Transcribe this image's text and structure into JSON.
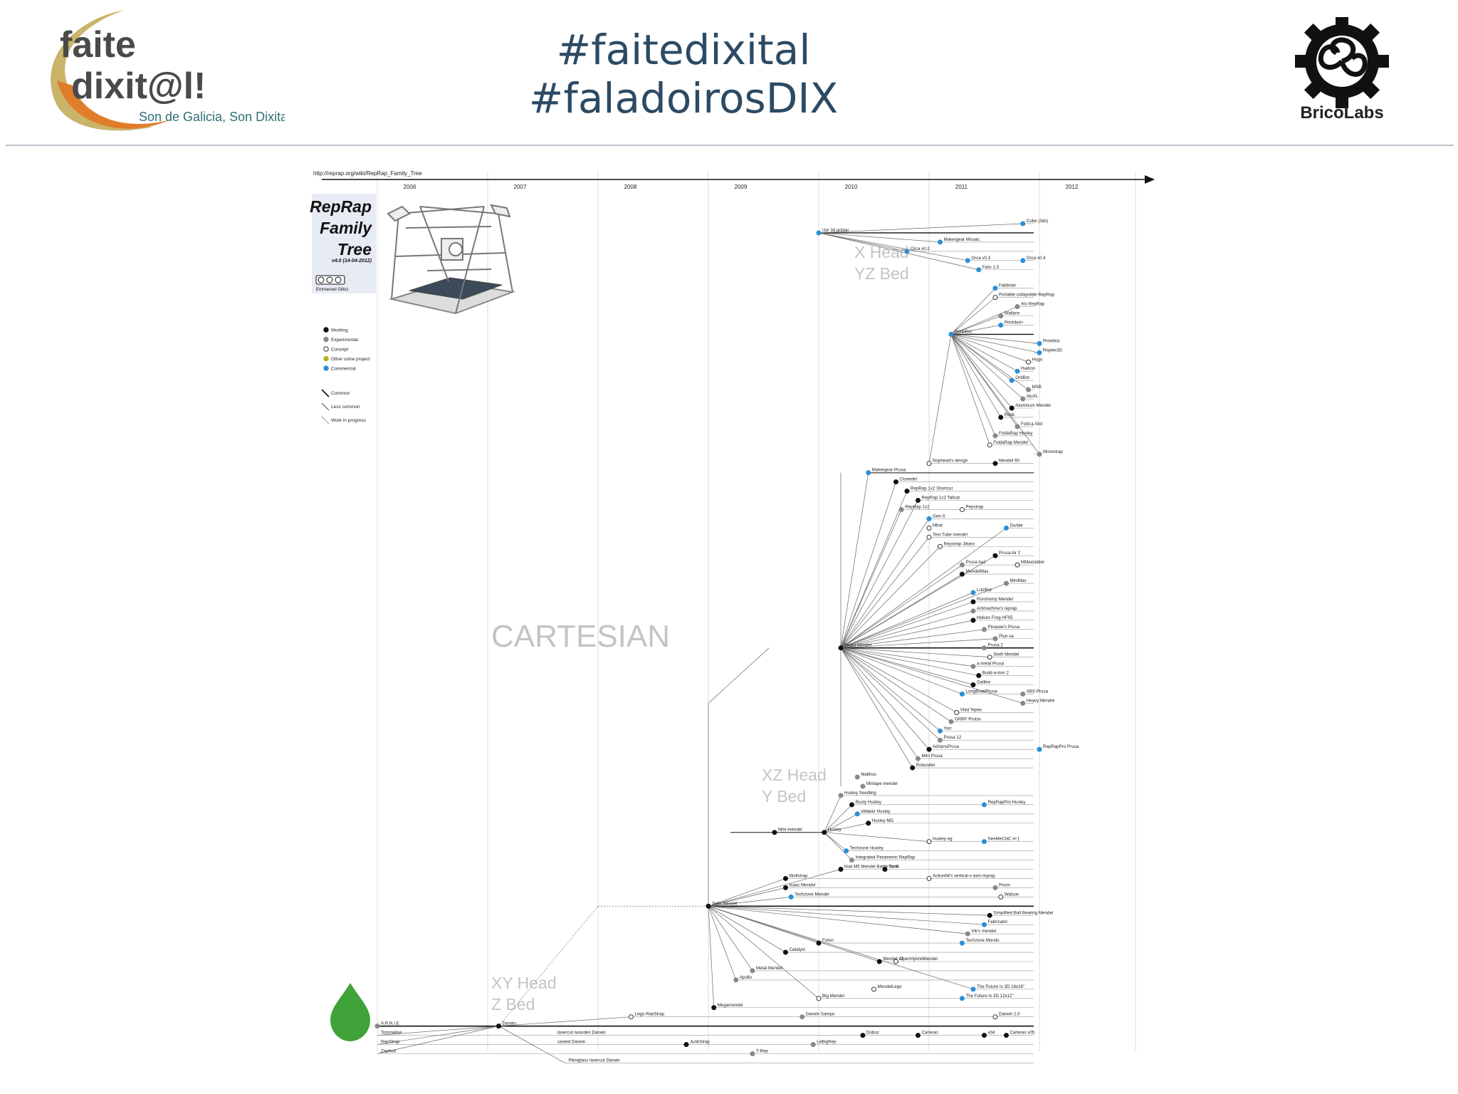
{
  "header": {
    "brand_left_line1": "faite",
    "brand_left_line2": "dixit@l!",
    "brand_left_tagline": "Son de Galicia, Son Dixital",
    "hashtag_1": "#faitedixital",
    "hashtag_2": "#faladoirosDIX",
    "brand_right": "BricoLabs"
  },
  "diagram": {
    "source_url": "http://reprap.org/wiki/RepRap_Family_Tree",
    "title_lines": [
      "RepRap",
      "Family",
      "Tree"
    ],
    "version": "v4.0 (14-04-2012)",
    "author": "Emmanuel Gilloz",
    "years": [
      "2006",
      "2007",
      "2008",
      "2009",
      "2010",
      "2011",
      "2012"
    ],
    "legend_status": [
      {
        "label": "Working",
        "color": "#111111",
        "hollow": false
      },
      {
        "label": "Experimental",
        "color": "#888888",
        "hollow": false
      },
      {
        "label": "Concept",
        "color": "#ffffff",
        "hollow": true
      },
      {
        "label": "Other oshw project",
        "color": "#b7b020",
        "hollow": false
      },
      {
        "label": "Commercial",
        "color": "#2a8fd6",
        "hollow": false
      }
    ],
    "legend_lines": [
      {
        "label": "Common",
        "style": "solid"
      },
      {
        "label": "Less common",
        "style": "thin"
      },
      {
        "label": "Work in progress",
        "style": "dotted"
      }
    ],
    "regions": [
      {
        "lines": [
          "X Head",
          "YZ Bed"
        ]
      },
      {
        "lines": [
          "CARTESIAN"
        ]
      },
      {
        "lines": [
          "XZ Head",
          "Y Bed"
        ]
      },
      {
        "lines": [
          "XY Head",
          "Z Bed"
        ]
      }
    ],
    "nodes": [
      {
        "label": "Cube (3ds)",
        "year": 2011.85,
        "row": 0,
        "status": "commercial"
      },
      {
        "label": "Up! 3d printer",
        "year": 2010.0,
        "row": 1,
        "status": "commercial"
      },
      {
        "label": "Makergear Mosaic",
        "year": 2011.1,
        "row": 2,
        "status": "commercial"
      },
      {
        "label": "Orca v0.2",
        "year": 2010.8,
        "row": 3,
        "status": "commercial"
      },
      {
        "label": "Orca v0.3",
        "year": 2011.35,
        "row": 4,
        "status": "commercial"
      },
      {
        "label": "Orca v0.4",
        "year": 2011.85,
        "row": 4,
        "status": "commercial"
      },
      {
        "label": "Felix 1.0",
        "year": 2011.45,
        "row": 5,
        "status": "commercial"
      },
      {
        "label": "Fabbster",
        "year": 2011.6,
        "row": 7,
        "status": "commercial"
      },
      {
        "label": "Portable collapsible RepRap",
        "year": 2011.6,
        "row": 8,
        "status": "concept"
      },
      {
        "label": "Alu RepRap",
        "year": 2011.8,
        "row": 9,
        "status": "experimental"
      },
      {
        "label": "Wallace",
        "year": 2011.65,
        "row": 10,
        "status": "experimental"
      },
      {
        "label": "Printrbot+",
        "year": 2011.65,
        "row": 11,
        "status": "commercial"
      },
      {
        "label": "PrintrBot",
        "year": 2011.2,
        "row": 12,
        "status": "commercial"
      },
      {
        "label": "Printrbot",
        "year": 2012.0,
        "row": 13,
        "status": "commercial"
      },
      {
        "label": "Replex3D",
        "year": 2012.0,
        "row": 14,
        "status": "commercial"
      },
      {
        "label": "Hugo",
        "year": 2011.9,
        "row": 15,
        "status": "concept"
      },
      {
        "label": "Hadron",
        "year": 2011.8,
        "row": 16,
        "status": "commercial"
      },
      {
        "label": "OrdBot",
        "year": 2011.75,
        "row": 17,
        "status": "commercial"
      },
      {
        "label": "MSB",
        "year": 2011.9,
        "row": 18,
        "status": "experimental"
      },
      {
        "label": "AluXL",
        "year": 2011.85,
        "row": 19,
        "status": "experimental"
      },
      {
        "label": "Aluminum Mendel",
        "year": 2011.75,
        "row": 20,
        "status": "working"
      },
      {
        "label": "Rook",
        "year": 2011.65,
        "row": 21,
        "status": "working"
      },
      {
        "label": "Fold-a-Slot",
        "year": 2011.8,
        "row": 22,
        "status": "experimental"
      },
      {
        "label": "FoldaRap Huxley",
        "year": 2011.6,
        "row": 23,
        "status": "experimental"
      },
      {
        "label": "FoldaRap Mendel",
        "year": 2011.55,
        "row": 24,
        "status": "concept"
      },
      {
        "label": "Morestrap",
        "year": 2012.0,
        "row": 25,
        "status": "experimental"
      },
      {
        "label": "Nophead's design",
        "year": 2011.0,
        "row": 26,
        "status": "concept"
      },
      {
        "label": "Mendel 90",
        "year": 2011.6,
        "row": 26,
        "status": "working"
      },
      {
        "label": "Makergear Prusa",
        "year": 2010.45,
        "row": 27,
        "status": "commercial"
      },
      {
        "label": "Clonedel",
        "year": 2010.7,
        "row": 28,
        "status": "working"
      },
      {
        "label": "RepRap 1x2 Shortcut",
        "year": 2010.8,
        "row": 29,
        "status": "working"
      },
      {
        "label": "RepRap 1x2 Tallcat",
        "year": 2010.9,
        "row": 30,
        "status": "working"
      },
      {
        "label": "RepRap 1x2",
        "year": 2010.75,
        "row": 31,
        "status": "experimental"
      },
      {
        "label": "Pepstrap",
        "year": 2011.3,
        "row": 31,
        "status": "concept"
      },
      {
        "label": "Gen-X",
        "year": 2011.0,
        "row": 32,
        "status": "commercial"
      },
      {
        "label": "Durbie",
        "year": 2011.7,
        "row": 33,
        "status": "commercial"
      },
      {
        "label": "Mbot",
        "year": 2011.0,
        "row": 33,
        "status": "concept"
      },
      {
        "label": "Test Tube mendel",
        "year": 2011.0,
        "row": 34,
        "status": "concept"
      },
      {
        "label": "Repstrap Jibaro",
        "year": 2011.1,
        "row": 35,
        "status": "concept"
      },
      {
        "label": "Prusa Air 2",
        "year": 2011.6,
        "row": 36,
        "status": "working"
      },
      {
        "label": "Prusa Aaz",
        "year": 2011.3,
        "row": 37,
        "status": "experimental"
      },
      {
        "label": "MMaxislider",
        "year": 2011.8,
        "row": 37,
        "status": "concept"
      },
      {
        "label": "MendelMax",
        "year": 2011.3,
        "row": 38,
        "status": "working"
      },
      {
        "label": "MiniMax",
        "year": 2011.7,
        "row": 39,
        "status": "experimental"
      },
      {
        "label": "LulzBot",
        "year": 2011.4,
        "row": 40,
        "status": "commercial"
      },
      {
        "label": "Rorohomp Mendel",
        "year": 2011.4,
        "row": 41,
        "status": "working"
      },
      {
        "label": "Artimachine's reprap",
        "year": 2011.4,
        "row": 42,
        "status": "experimental"
      },
      {
        "label": "Helium Frog HF05",
        "year": 2011.4,
        "row": 43,
        "status": "working"
      },
      {
        "label": "Pinacee's Prusa",
        "year": 2011.5,
        "row": 44,
        "status": "experimental"
      },
      {
        "label": "Plun-sa",
        "year": 2011.6,
        "row": 45,
        "status": "experimental"
      },
      {
        "label": "Prusa Mendel",
        "year": 2010.2,
        "row": 46,
        "status": "working"
      },
      {
        "label": "Prusa 2",
        "year": 2011.5,
        "row": 46,
        "status": "experimental"
      },
      {
        "label": "Sloth Mendel",
        "year": 2011.55,
        "row": 47,
        "status": "concept"
      },
      {
        "label": "a metal Prusa",
        "year": 2011.4,
        "row": 48,
        "status": "experimental"
      },
      {
        "label": "Build-a-tron 2",
        "year": 2011.45,
        "row": 49,
        "status": "working"
      },
      {
        "label": "Galileo",
        "year": 2011.4,
        "row": 50,
        "status": "working"
      },
      {
        "label": "LongBoat/Prusa",
        "year": 2011.3,
        "row": 51,
        "status": "commercial"
      },
      {
        "label": "ABS Prusa",
        "year": 2011.85,
        "row": 51,
        "status": "experimental"
      },
      {
        "label": "Heavy Mendel",
        "year": 2011.85,
        "row": 52,
        "status": "experimental"
      },
      {
        "label": "Vlad Tepes",
        "year": 2011.25,
        "row": 53,
        "status": "concept"
      },
      {
        "label": "GRRF Protos",
        "year": 2011.2,
        "row": 54,
        "status": "experimental"
      },
      {
        "label": "Yarr",
        "year": 2011.1,
        "row": 55,
        "status": "commercial"
      },
      {
        "label": "Prusa 12",
        "year": 2011.1,
        "row": 56,
        "status": "experimental"
      },
      {
        "label": "AdriansPrusa",
        "year": 2011.0,
        "row": 57,
        "status": "working"
      },
      {
        "label": "RepRapPro Prusa",
        "year": 2012.0,
        "row": 57,
        "status": "commercial"
      },
      {
        "label": "Mini Prusa",
        "year": 2010.9,
        "row": 58,
        "status": "experimental"
      },
      {
        "label": "Robundel",
        "year": 2010.85,
        "row": 59,
        "status": "working"
      },
      {
        "label": "Malthus",
        "year": 2010.35,
        "row": 60,
        "status": "experimental"
      },
      {
        "label": "Mixtape mendel",
        "year": 2010.4,
        "row": 61,
        "status": "experimental"
      },
      {
        "label": "Huxley Seedling",
        "year": 2010.2,
        "row": 62,
        "status": "experimental"
      },
      {
        "label": "Rusty Huxley",
        "year": 2010.3,
        "row": 63,
        "status": "working"
      },
      {
        "label": "RepRapPro Huxley",
        "year": 2011.5,
        "row": 63,
        "status": "commercial"
      },
      {
        "label": "eMaker Huxley",
        "year": 2010.35,
        "row": 64,
        "status": "commercial"
      },
      {
        "label": "Huxley MD",
        "year": 2010.45,
        "row": 65,
        "status": "working"
      },
      {
        "label": "Mini-mendel",
        "year": 2009.6,
        "row": 66,
        "status": "working"
      },
      {
        "label": "Huxley",
        "year": 2010.05,
        "row": 66,
        "status": "working"
      },
      {
        "label": "Huxley eg",
        "year": 2011.0,
        "row": 67,
        "status": "concept"
      },
      {
        "label": "SeeMeCNC H-1",
        "year": 2011.5,
        "row": 67,
        "status": "commercial"
      },
      {
        "label": "Techzone Huxley",
        "year": 2010.25,
        "row": 68,
        "status": "commercial"
      },
      {
        "label": "Integrated Parametric RepRap",
        "year": 2010.3,
        "row": 69,
        "status": "experimental"
      },
      {
        "label": "Kiwi M5 Mendel Battle Tank",
        "year": 2010.2,
        "row": 70,
        "status": "working"
      },
      {
        "label": "VertX",
        "year": 2010.6,
        "row": 70,
        "status": "working"
      },
      {
        "label": "Wolfstrap",
        "year": 2009.7,
        "row": 71,
        "status": "working"
      },
      {
        "label": "Action68's vertical-x-axis-reprap",
        "year": 2011.0,
        "row": 71,
        "status": "concept"
      },
      {
        "label": "Isaac Mendel",
        "year": 2009.7,
        "row": 72,
        "status": "working"
      },
      {
        "label": "Prism",
        "year": 2011.6,
        "row": 72,
        "status": "experimental"
      },
      {
        "label": "Techzone Mendel",
        "year": 2009.75,
        "row": 73,
        "status": "commercial"
      },
      {
        "label": "Watson",
        "year": 2011.65,
        "row": 73,
        "status": "concept"
      },
      {
        "label": "Sells Mendel",
        "year": 2009.0,
        "row": 74,
        "status": "working"
      },
      {
        "label": "Simplified Ball Bearing Mendel",
        "year": 2011.55,
        "row": 75,
        "status": "working"
      },
      {
        "label": "Fabricator",
        "year": 2011.5,
        "row": 76,
        "status": "commercial"
      },
      {
        "label": "Vik's mendel",
        "year": 2011.35,
        "row": 77,
        "status": "experimental"
      },
      {
        "label": "Foton",
        "year": 2010.0,
        "row": 78,
        "status": "working"
      },
      {
        "label": "Techzone Mondo",
        "year": 2011.3,
        "row": 78,
        "status": "commercial"
      },
      {
        "label": "Catalyst",
        "year": 2009.7,
        "row": 79,
        "status": "working"
      },
      {
        "label": "Mendel v2",
        "year": 2010.55,
        "row": 80,
        "status": "working"
      },
      {
        "label": "OpenHybridMendel",
        "year": 2010.7,
        "row": 80,
        "status": "concept"
      },
      {
        "label": "Metal Mendel",
        "year": 2009.4,
        "row": 81,
        "status": "experimental"
      },
      {
        "label": "Apollo",
        "year": 2009.25,
        "row": 82,
        "status": "experimental"
      },
      {
        "label": "The Future Is 3D 16x16\"",
        "year": 2011.4,
        "row": 83,
        "status": "commercial"
      },
      {
        "label": "MendelLego",
        "year": 2010.5,
        "row": 83,
        "status": "concept"
      },
      {
        "label": "Big Mendel",
        "year": 2010.0,
        "row": 84,
        "status": "concept"
      },
      {
        "label": "The Future Is 3D 12x12\"",
        "year": 2011.3,
        "row": 84,
        "status": "commercial"
      },
      {
        "label": "Megamendel",
        "year": 2009.05,
        "row": 85,
        "status": "working"
      },
      {
        "label": "Lego RepStrap",
        "year": 2008.3,
        "row": 86,
        "status": "concept"
      },
      {
        "label": "Darwin Sampo",
        "year": 2009.85,
        "row": 86,
        "status": "experimental"
      },
      {
        "label": "Darwin 2.0",
        "year": 2011.6,
        "row": 86,
        "status": "concept"
      },
      {
        "label": "A.R.N.I.E",
        "year": 2006.0,
        "row": 87,
        "status": "experimental"
      },
      {
        "label": "Darwin",
        "year": 2007.1,
        "row": 87,
        "status": "working"
      },
      {
        "label": "Tommelise",
        "year": 2006.0,
        "row": 88,
        "status": "label"
      },
      {
        "label": "lasercut /wooden Darwin",
        "year": 2007.6,
        "row": 88,
        "status": "label"
      },
      {
        "label": "Doboz",
        "year": 2010.4,
        "row": 88,
        "status": "working"
      },
      {
        "label": "Cartesio",
        "year": 2010.9,
        "row": 88,
        "status": "working"
      },
      {
        "label": "v04",
        "year": 2011.5,
        "row": 88,
        "status": "working"
      },
      {
        "label": "Cartesio v05",
        "year": 2011.7,
        "row": 88,
        "status": "working"
      },
      {
        "label": "RepStrap",
        "year": 2006.0,
        "row": 89,
        "status": "label"
      },
      {
        "label": "casted Darwin",
        "year": 2007.6,
        "row": 89,
        "status": "label"
      },
      {
        "label": "JunkStrap",
        "year": 2008.8,
        "row": 89,
        "status": "working"
      },
      {
        "label": "LeBigRep",
        "year": 2009.95,
        "row": 89,
        "status": "experimental"
      },
      {
        "label": "Zaphod",
        "year": 2006.0,
        "row": 90,
        "status": "label"
      },
      {
        "label": "T-Rep",
        "year": 2009.4,
        "row": 90,
        "status": "experimental"
      },
      {
        "label": "Plexiglass lasercut Darwin",
        "year": 2007.7,
        "row": 91,
        "status": "label"
      }
    ]
  }
}
